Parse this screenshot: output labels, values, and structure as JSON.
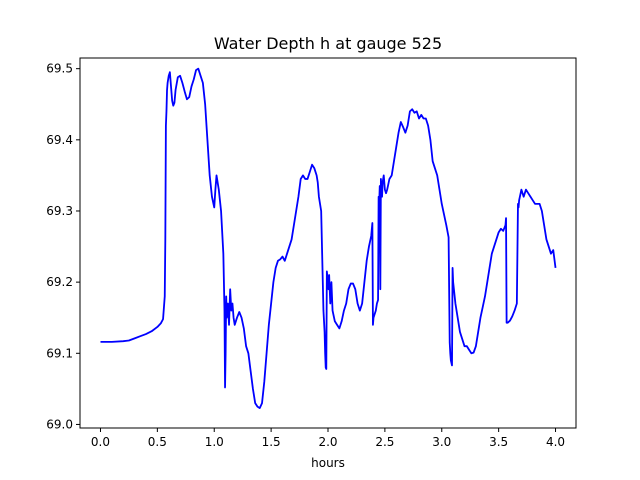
{
  "chart_data": {
    "type": "line",
    "title": "Water Depth h at gauge 525",
    "xlabel": "hours",
    "ylabel": "",
    "xlim": [
      -0.18,
      4.18
    ],
    "ylim": [
      68.995,
      69.515
    ],
    "xticks": [
      0.0,
      0.5,
      1.0,
      1.5,
      2.0,
      2.5,
      3.0,
      3.5,
      4.0
    ],
    "xtick_labels": [
      "0.0",
      "0.5",
      "1.0",
      "1.5",
      "2.0",
      "2.5",
      "3.0",
      "3.5",
      "4.0"
    ],
    "yticks": [
      69.0,
      69.1,
      69.2,
      69.3,
      69.4,
      69.5
    ],
    "ytick_labels": [
      "69.0",
      "69.1",
      "69.2",
      "69.3",
      "69.4",
      "69.5"
    ],
    "grid": false,
    "series": [
      {
        "color": "#0000ff",
        "x": [
          0.0,
          0.1,
          0.2,
          0.25,
          0.3,
          0.35,
          0.4,
          0.45,
          0.5,
          0.53,
          0.55,
          0.565,
          0.57,
          0.575,
          0.58,
          0.585,
          0.59,
          0.6,
          0.61,
          0.62,
          0.63,
          0.64,
          0.65,
          0.66,
          0.68,
          0.7,
          0.72,
          0.74,
          0.76,
          0.78,
          0.8,
          0.82,
          0.84,
          0.86,
          0.88,
          0.9,
          0.92,
          0.94,
          0.96,
          0.98,
          1.0,
          1.01,
          1.02,
          1.04,
          1.06,
          1.08,
          1.09,
          1.095,
          1.1,
          1.105,
          1.11,
          1.12,
          1.13,
          1.14,
          1.15,
          1.16,
          1.17,
          1.18,
          1.2,
          1.22,
          1.24,
          1.26,
          1.28,
          1.3,
          1.32,
          1.34,
          1.36,
          1.38,
          1.4,
          1.42,
          1.44,
          1.46,
          1.48,
          1.5,
          1.52,
          1.54,
          1.56,
          1.58,
          1.6,
          1.62,
          1.64,
          1.66,
          1.68,
          1.7,
          1.72,
          1.74,
          1.76,
          1.78,
          1.8,
          1.82,
          1.84,
          1.86,
          1.88,
          1.9,
          1.91,
          1.92,
          1.94,
          1.96,
          1.97,
          1.975,
          1.98,
          1.985,
          1.99,
          2.0,
          2.005,
          2.01,
          2.02,
          2.03,
          2.04,
          2.06,
          2.08,
          2.1,
          2.12,
          2.14,
          2.16,
          2.18,
          2.2,
          2.22,
          2.24,
          2.26,
          2.28,
          2.3,
          2.32,
          2.34,
          2.36,
          2.38,
          2.39,
          2.395,
          2.4,
          2.42,
          2.43,
          2.44,
          2.445,
          2.45,
          2.455,
          2.46,
          2.465,
          2.47,
          2.475,
          2.48,
          2.49,
          2.5,
          2.51,
          2.52,
          2.54,
          2.56,
          2.58,
          2.6,
          2.62,
          2.64,
          2.66,
          2.68,
          2.7,
          2.72,
          2.74,
          2.76,
          2.78,
          2.8,
          2.82,
          2.84,
          2.86,
          2.88,
          2.9,
          2.92,
          2.94,
          2.96,
          2.98,
          3.0,
          3.02,
          3.04,
          3.06,
          3.07,
          3.075,
          3.08,
          3.09,
          3.095,
          3.1,
          3.12,
          3.14,
          3.16,
          3.18,
          3.2,
          3.22,
          3.24,
          3.26,
          3.28,
          3.3,
          3.32,
          3.34,
          3.36,
          3.38,
          3.4,
          3.42,
          3.44,
          3.46,
          3.48,
          3.5,
          3.52,
          3.54,
          3.56,
          3.565,
          3.57,
          3.58,
          3.6,
          3.62,
          3.64,
          3.66,
          3.67,
          3.675,
          3.68,
          3.7,
          3.72,
          3.74,
          3.76,
          3.78,
          3.8,
          3.82,
          3.84,
          3.86,
          3.88,
          3.9,
          3.92,
          3.94,
          3.96,
          3.98,
          4.0
        ],
        "y": [
          69.116,
          69.116,
          69.117,
          69.118,
          69.121,
          69.124,
          69.127,
          69.131,
          69.137,
          69.142,
          69.148,
          69.18,
          69.26,
          69.42,
          69.44,
          69.47,
          69.48,
          69.49,
          69.495,
          69.475,
          69.455,
          69.448,
          69.452,
          69.47,
          69.488,
          69.49,
          69.48,
          69.468,
          69.457,
          69.46,
          69.475,
          69.485,
          69.498,
          69.5,
          69.49,
          69.48,
          69.45,
          69.4,
          69.35,
          69.32,
          69.305,
          69.33,
          69.35,
          69.33,
          69.3,
          69.24,
          69.16,
          69.052,
          69.1,
          69.18,
          69.15,
          69.17,
          69.14,
          69.19,
          69.16,
          69.17,
          69.15,
          69.14,
          69.15,
          69.158,
          69.15,
          69.135,
          69.11,
          69.1,
          69.075,
          69.05,
          69.03,
          69.025,
          69.023,
          69.03,
          69.06,
          69.1,
          69.14,
          69.17,
          69.2,
          69.22,
          69.23,
          69.232,
          69.236,
          69.23,
          69.24,
          69.25,
          69.26,
          69.28,
          69.3,
          69.32,
          69.345,
          69.35,
          69.345,
          69.345,
          69.355,
          69.365,
          69.36,
          69.35,
          69.34,
          69.32,
          69.3,
          69.16,
          69.13,
          69.1,
          69.08,
          69.078,
          69.215,
          69.2,
          69.19,
          69.21,
          69.17,
          69.2,
          69.16,
          69.145,
          69.14,
          69.135,
          69.145,
          69.16,
          69.17,
          69.19,
          69.198,
          69.198,
          69.19,
          69.17,
          69.16,
          69.17,
          69.2,
          69.23,
          69.25,
          69.265,
          69.283,
          69.14,
          69.15,
          69.16,
          69.17,
          69.175,
          69.32,
          69.31,
          69.335,
          69.19,
          69.345,
          69.33,
          69.32,
          69.34,
          69.35,
          69.33,
          69.325,
          69.33,
          69.345,
          69.35,
          69.37,
          69.39,
          69.41,
          69.425,
          69.418,
          69.41,
          69.42,
          69.44,
          69.443,
          69.438,
          69.44,
          69.43,
          69.435,
          69.43,
          69.43,
          69.42,
          69.4,
          69.37,
          69.36,
          69.35,
          69.33,
          69.31,
          69.295,
          69.28,
          69.263,
          69.115,
          69.1,
          69.09,
          69.083,
          69.22,
          69.2,
          69.17,
          69.15,
          69.13,
          69.12,
          69.11,
          69.11,
          69.105,
          69.1,
          69.101,
          69.11,
          69.13,
          69.15,
          69.165,
          69.18,
          69.2,
          69.22,
          69.24,
          69.25,
          69.26,
          69.27,
          69.275,
          69.272,
          69.28,
          69.29,
          69.143,
          69.143,
          69.146,
          69.152,
          69.16,
          69.17,
          69.31,
          69.305,
          69.315,
          69.33,
          69.32,
          69.33,
          69.325,
          69.32,
          69.315,
          69.31,
          69.31,
          69.31,
          69.3,
          69.28,
          69.26,
          69.25,
          69.24,
          69.245,
          69.22
        ]
      }
    ]
  }
}
